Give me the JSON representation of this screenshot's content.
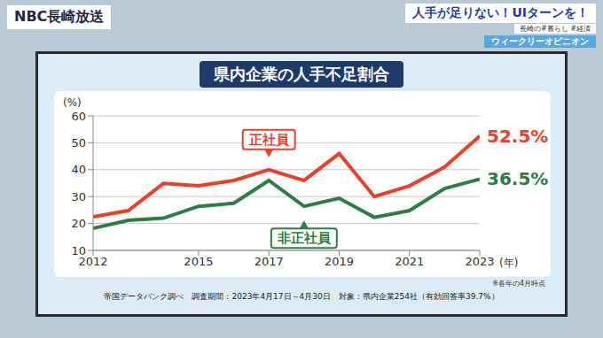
{
  "screen": {
    "logo": "NBC長崎放送",
    "headline": "人手が足りない！UIターンを！",
    "tags": "長崎の#暮らし #経済",
    "program": "ウィークリーオピニオン"
  },
  "chart_data": {
    "type": "line",
    "title": "県内企業の人手不足割合",
    "xlabel": "(年)",
    "ylabel": "(%)",
    "x": [
      2012,
      2013,
      2014,
      2015,
      2016,
      2017,
      2018,
      2019,
      2020,
      2021,
      2022,
      2023
    ],
    "xlim": [
      2012,
      2023
    ],
    "xticks": [
      2012,
      2015,
      2017,
      2019,
      2021,
      2023
    ],
    "ylim": [
      10,
      60
    ],
    "yticks": [
      10,
      20,
      30,
      40,
      50,
      60
    ],
    "grid": true,
    "series": [
      {
        "name": "正社員",
        "color": "#e8402a",
        "values": [
          22.5,
          24.8,
          34.9,
          34,
          36,
          40,
          36,
          46,
          30,
          34,
          41,
          52.5
        ],
        "value_labels": [
          null,
          null,
          null,
          null,
          null,
          null,
          null,
          null,
          null,
          null,
          null,
          "52.5%"
        ]
      },
      {
        "name": "非正社員",
        "color": "#2e7d45",
        "values": [
          18.2,
          21.2,
          22,
          26.4,
          27.5,
          36,
          26.4,
          29.4,
          22.3,
          24.8,
          33,
          36.5
        ],
        "value_labels": [
          null,
          null,
          null,
          null,
          null,
          null,
          null,
          null,
          null,
          null,
          null,
          "36.5%"
        ]
      }
    ],
    "note": "※各年の4月時点",
    "source": "帝国データバンク調べ　調査期間：2023年4月17日～4月30日　対象：県内企業254社（有効回答率39.7%）"
  }
}
